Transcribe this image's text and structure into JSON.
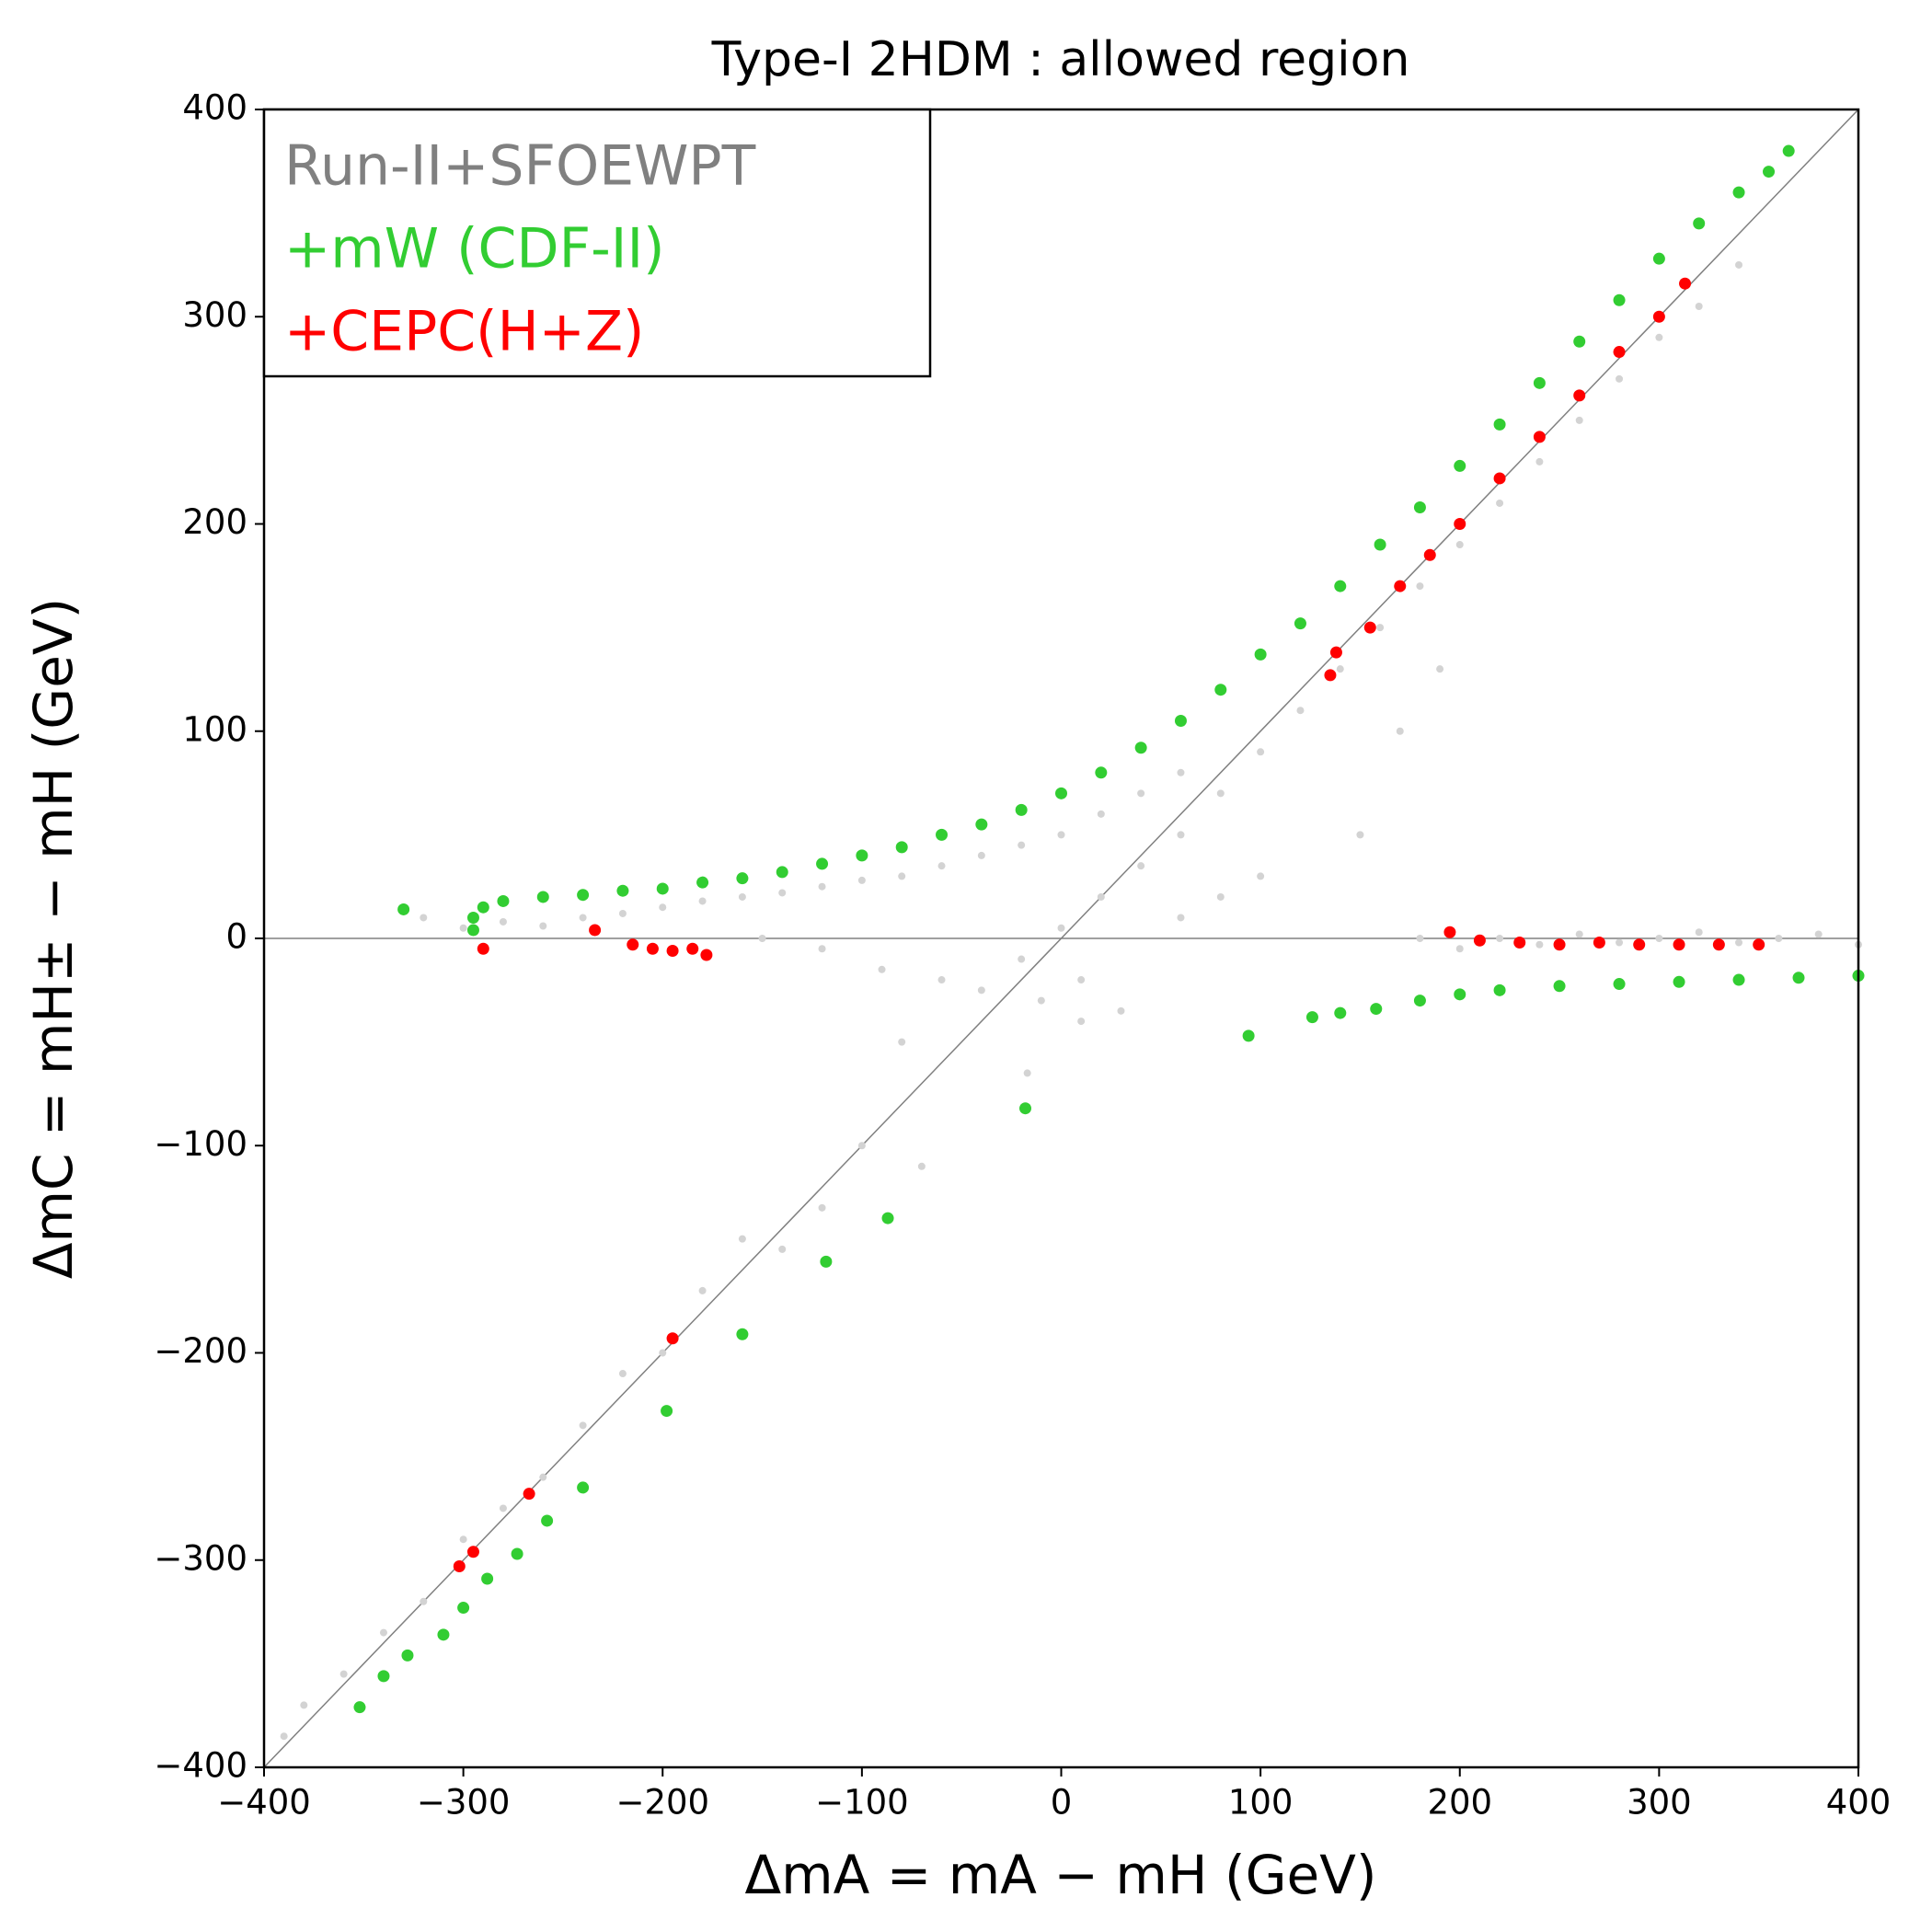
{
  "chart_data": {
    "type": "scatter",
    "title": "Type-I 2HDM : allowed region",
    "x_label": "ΔmA = mA − mH (GeV)",
    "y_label": "ΔmC = mH± − mH (GeV)",
    "xlim": [
      -400,
      400
    ],
    "ylim": [
      -400,
      400
    ],
    "xticks": [
      {
        "value": -400,
        "label": "−400"
      },
      {
        "value": -300,
        "label": "−300"
      },
      {
        "value": -200,
        "label": "−200"
      },
      {
        "value": -100,
        "label": "−100"
      },
      0,
      100,
      200,
      300,
      400
    ],
    "yticks": [
      {
        "value": -400,
        "label": "−400"
      },
      {
        "value": -300,
        "label": "−300"
      },
      {
        "value": -200,
        "label": "−200"
      },
      {
        "value": -100,
        "label": "−100"
      },
      0,
      100,
      200,
      300,
      400
    ],
    "legend_position": "upper left",
    "series": [
      {
        "name": "Run-II+SFOEWPT",
        "color": "#d3d3d3",
        "label_color": "#808080",
        "x": [
          -320,
          -300,
          -280,
          -260,
          -240,
          -220,
          -200,
          -180,
          -160,
          -140,
          -120,
          -100,
          -80,
          -60,
          -40,
          -20,
          0,
          20,
          40,
          60,
          -150,
          -120,
          -90,
          -60,
          -40,
          -20,
          0,
          20,
          40,
          60,
          80,
          100,
          120,
          140,
          160,
          180,
          200,
          220,
          240,
          260,
          280,
          300,
          320,
          340,
          180,
          200,
          220,
          240,
          260,
          280,
          300,
          320,
          340,
          360,
          380,
          400,
          60,
          80,
          100,
          -10,
          10,
          -80,
          -100,
          -120,
          -140,
          -160,
          -180,
          -200,
          -220,
          -240,
          -260,
          -280,
          -300,
          -320,
          -340,
          -360,
          -380,
          -390,
          10,
          30,
          -17,
          -70,
          150,
          170,
          190
        ],
        "y": [
          10,
          5,
          8,
          6,
          10,
          12,
          15,
          18,
          20,
          22,
          25,
          28,
          30,
          35,
          40,
          45,
          50,
          60,
          70,
          80,
          0,
          -5,
          -15,
          -20,
          -25,
          -10,
          5,
          20,
          35,
          50,
          70,
          90,
          110,
          130,
          150,
          170,
          190,
          210,
          230,
          250,
          270,
          290,
          305,
          325,
          0,
          -5,
          0,
          -3,
          2,
          -2,
          0,
          3,
          -2,
          0,
          2,
          -3,
          10,
          20,
          30,
          -30,
          -20,
          -50,
          -100,
          -130,
          -150,
          -145,
          -170,
          -200,
          -210,
          -235,
          -260,
          -275,
          -290,
          -320,
          -335,
          -355,
          -370,
          -385,
          -40,
          -35,
          -65,
          -110,
          50,
          100,
          130
        ]
      },
      {
        "name": "+mW (CDF-II)",
        "color": "#32cd32",
        "label_color": "#32cd32",
        "x": [
          -330,
          -295,
          -295,
          -290,
          -280,
          -260,
          -240,
          -220,
          -200,
          -180,
          -160,
          -140,
          -120,
          -100,
          -80,
          -60,
          -40,
          -20,
          0,
          20,
          40,
          60,
          80,
          100,
          120,
          140,
          160,
          180,
          200,
          220,
          240,
          260,
          280,
          300,
          320,
          340,
          355,
          365,
          94,
          126,
          140,
          158,
          180,
          200,
          220,
          250,
          280,
          310,
          340,
          370,
          400,
          -18,
          -87,
          -118,
          -160,
          -198,
          -240,
          -258,
          -273,
          -288,
          -300,
          -310,
          -328,
          -340,
          -352
        ],
        "y": [
          14,
          4,
          10,
          15,
          18,
          20,
          21,
          23,
          24,
          27,
          29,
          32,
          36,
          40,
          44,
          50,
          55,
          62,
          70,
          80,
          92,
          105,
          120,
          137,
          152,
          170,
          190,
          208,
          228,
          248,
          268,
          288,
          308,
          328,
          345,
          360,
          370,
          380,
          -47,
          -38,
          -36,
          -34,
          -30,
          -27,
          -25,
          -23,
          -22,
          -21,
          -20,
          -19,
          -18,
          -82,
          -135,
          -156,
          -191,
          -228,
          -265,
          -281,
          -297,
          -309,
          -323,
          -336,
          -346,
          -356,
          -371
        ]
      },
      {
        "name": "+CEPC(H+Z)",
        "color": "#ff0000",
        "label_color": "#ff0000",
        "x": [
          -290,
          -234,
          -215,
          -205,
          -195,
          -185,
          -178,
          195,
          210,
          230,
          250,
          270,
          290,
          310,
          330,
          350,
          313,
          300,
          280,
          260,
          240,
          220,
          200,
          185,
          170,
          155,
          138,
          135,
          -195,
          -267,
          -295,
          -302
        ],
        "y": [
          -5,
          4,
          -3,
          -5,
          -6,
          -5,
          -8,
          3,
          -1,
          -2,
          -3,
          -2,
          -3,
          -3,
          -3,
          -3,
          316,
          300,
          283,
          262,
          242,
          222,
          200,
          185,
          170,
          150,
          138,
          127,
          -193,
          -268,
          -296,
          -303
        ]
      }
    ]
  }
}
